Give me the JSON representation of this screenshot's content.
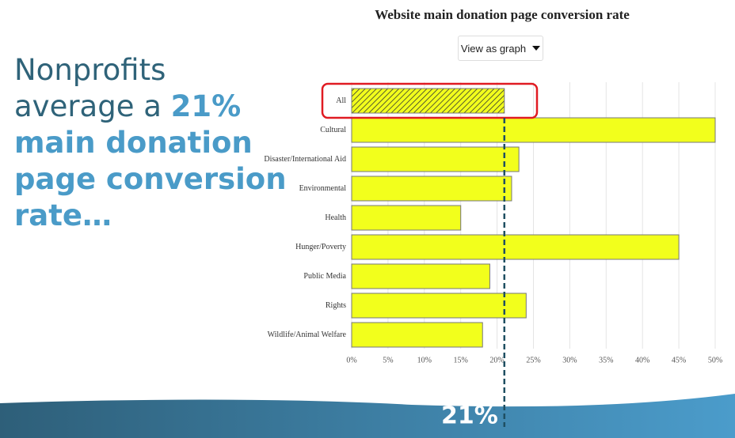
{
  "chart_data": {
    "type": "barh",
    "title": "Website main donation page conversion rate",
    "control_label": "View as graph",
    "categories": [
      "All",
      "Cultural",
      "Disaster/International Aid",
      "Environmental",
      "Health",
      "Hunger/Poverty",
      "Public Media",
      "Rights",
      "Wildlife/Animal Welfare"
    ],
    "values": [
      21,
      50,
      23,
      22,
      15,
      45,
      19,
      24,
      18
    ],
    "color": "#f2ff1c",
    "highlight_index": 0,
    "xlim": [
      0,
      50
    ],
    "xticks": [
      {
        "value": 0,
        "label": "0%"
      },
      {
        "value": 5,
        "label": "5%"
      },
      {
        "value": 10,
        "label": "10%"
      },
      {
        "value": 15,
        "label": "15%"
      },
      {
        "value": 20,
        "label": "20%"
      },
      {
        "value": 25,
        "label": "25%"
      },
      {
        "value": 30,
        "label": "30%"
      },
      {
        "value": 35,
        "label": "35%"
      },
      {
        "value": 40,
        "label": "40%"
      },
      {
        "value": 45,
        "label": "45%"
      },
      {
        "value": 50,
        "label": "50%"
      }
    ],
    "grid": true,
    "reference_value": 21,
    "reference_label": "21%"
  },
  "headline": {
    "line1": "Nonprofits",
    "line2_plain": "average a",
    "line2_bold": "21%",
    "line3": "main donation",
    "line4": "page conversion",
    "line5": "rate…"
  }
}
